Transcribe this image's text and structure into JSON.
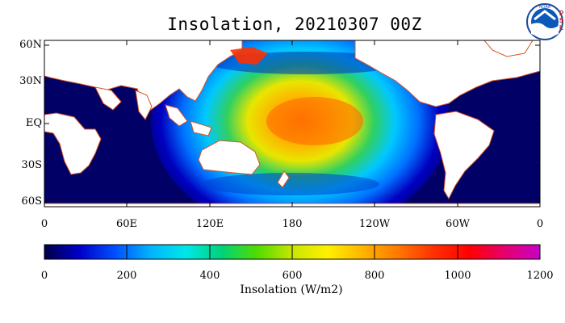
{
  "title": "Insolation, 20210307 00Z",
  "logo": {
    "text": "NOAA",
    "side_text": "PSL"
  },
  "lat_labels": [
    "60N",
    "30N",
    "EQ",
    "30S",
    "60S"
  ],
  "lon_labels": [
    "0",
    "60E",
    "120E",
    "180",
    "120W",
    "60W",
    "0"
  ],
  "colorbar": {
    "ticks": [
      "0",
      "200",
      "400",
      "600",
      "800",
      "1000",
      "1200"
    ],
    "title": "Insolation (W/m2)",
    "colors": [
      "#00004a",
      "#0000c8",
      "#0050ff",
      "#00b4ff",
      "#00e6e6",
      "#00d27a",
      "#50dc00",
      "#c8e600",
      "#fff000",
      "#ffb400",
      "#ff7800",
      "#ff3000",
      "#ff0000",
      "#e6006e",
      "#c800c8"
    ]
  },
  "colors": {
    "ocean_night": "#000066",
    "land": "#ffffff",
    "coast": "#e05020"
  }
}
